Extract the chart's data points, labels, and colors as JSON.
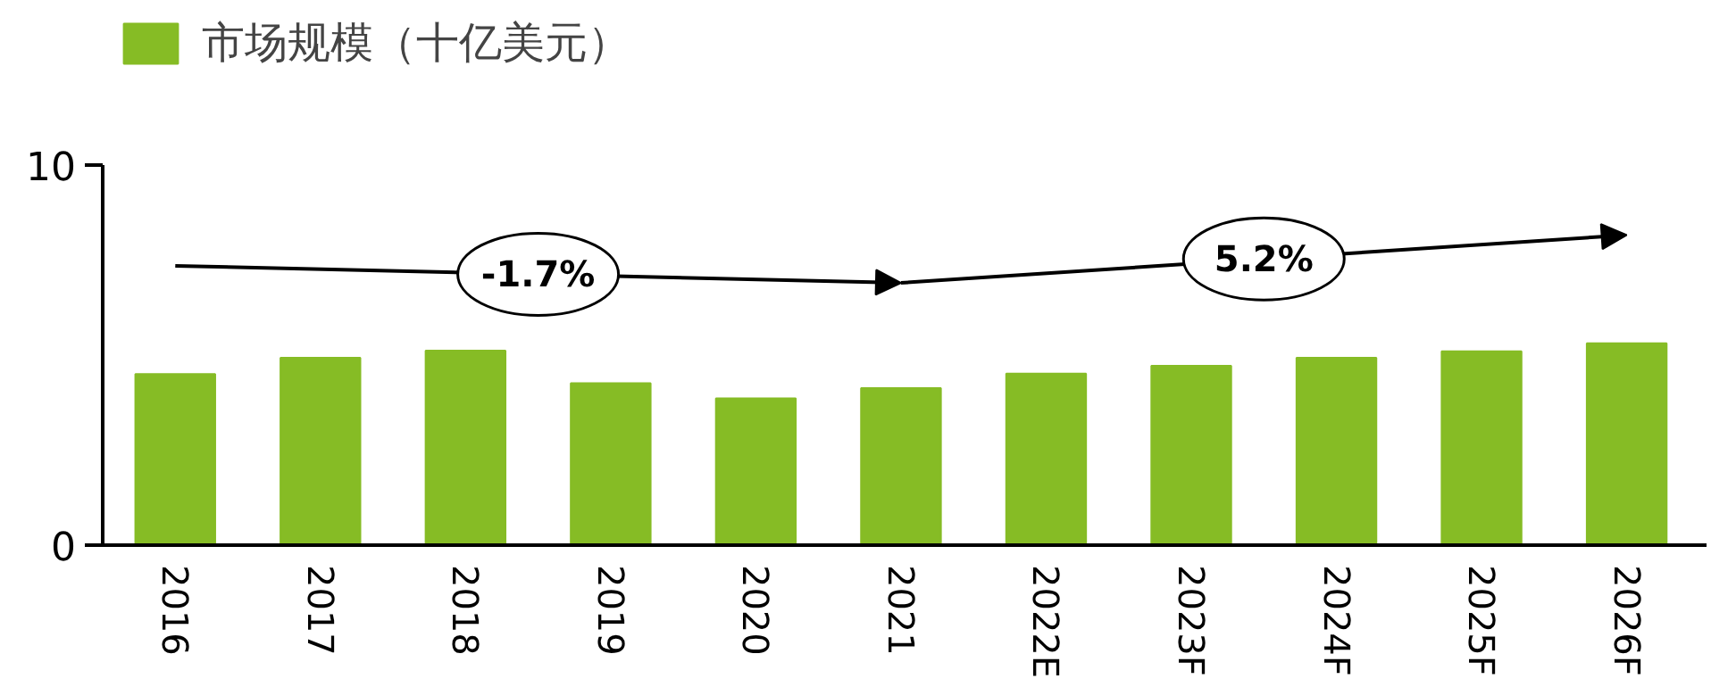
{
  "chart_data": {
    "type": "bar",
    "categories": [
      "2016",
      "2017",
      "2018",
      "2019",
      "2020",
      "2021",
      "2022E",
      "2023F",
      "2024F",
      "2025F",
      "2026F"
    ],
    "series": [
      {
        "name": "市场规模（十亿美元）",
        "color": "#86bc25",
        "values": [
          4.5,
          4.93,
          5.12,
          4.26,
          3.86,
          4.13,
          4.51,
          4.72,
          4.93,
          5.1,
          5.31
        ]
      }
    ],
    "ylim": [
      0,
      10
    ],
    "yticks": [
      0,
      10
    ],
    "grid": false,
    "legend": "top left",
    "annotations": [
      "-1.7%",
      "5.2%"
    ]
  }
}
